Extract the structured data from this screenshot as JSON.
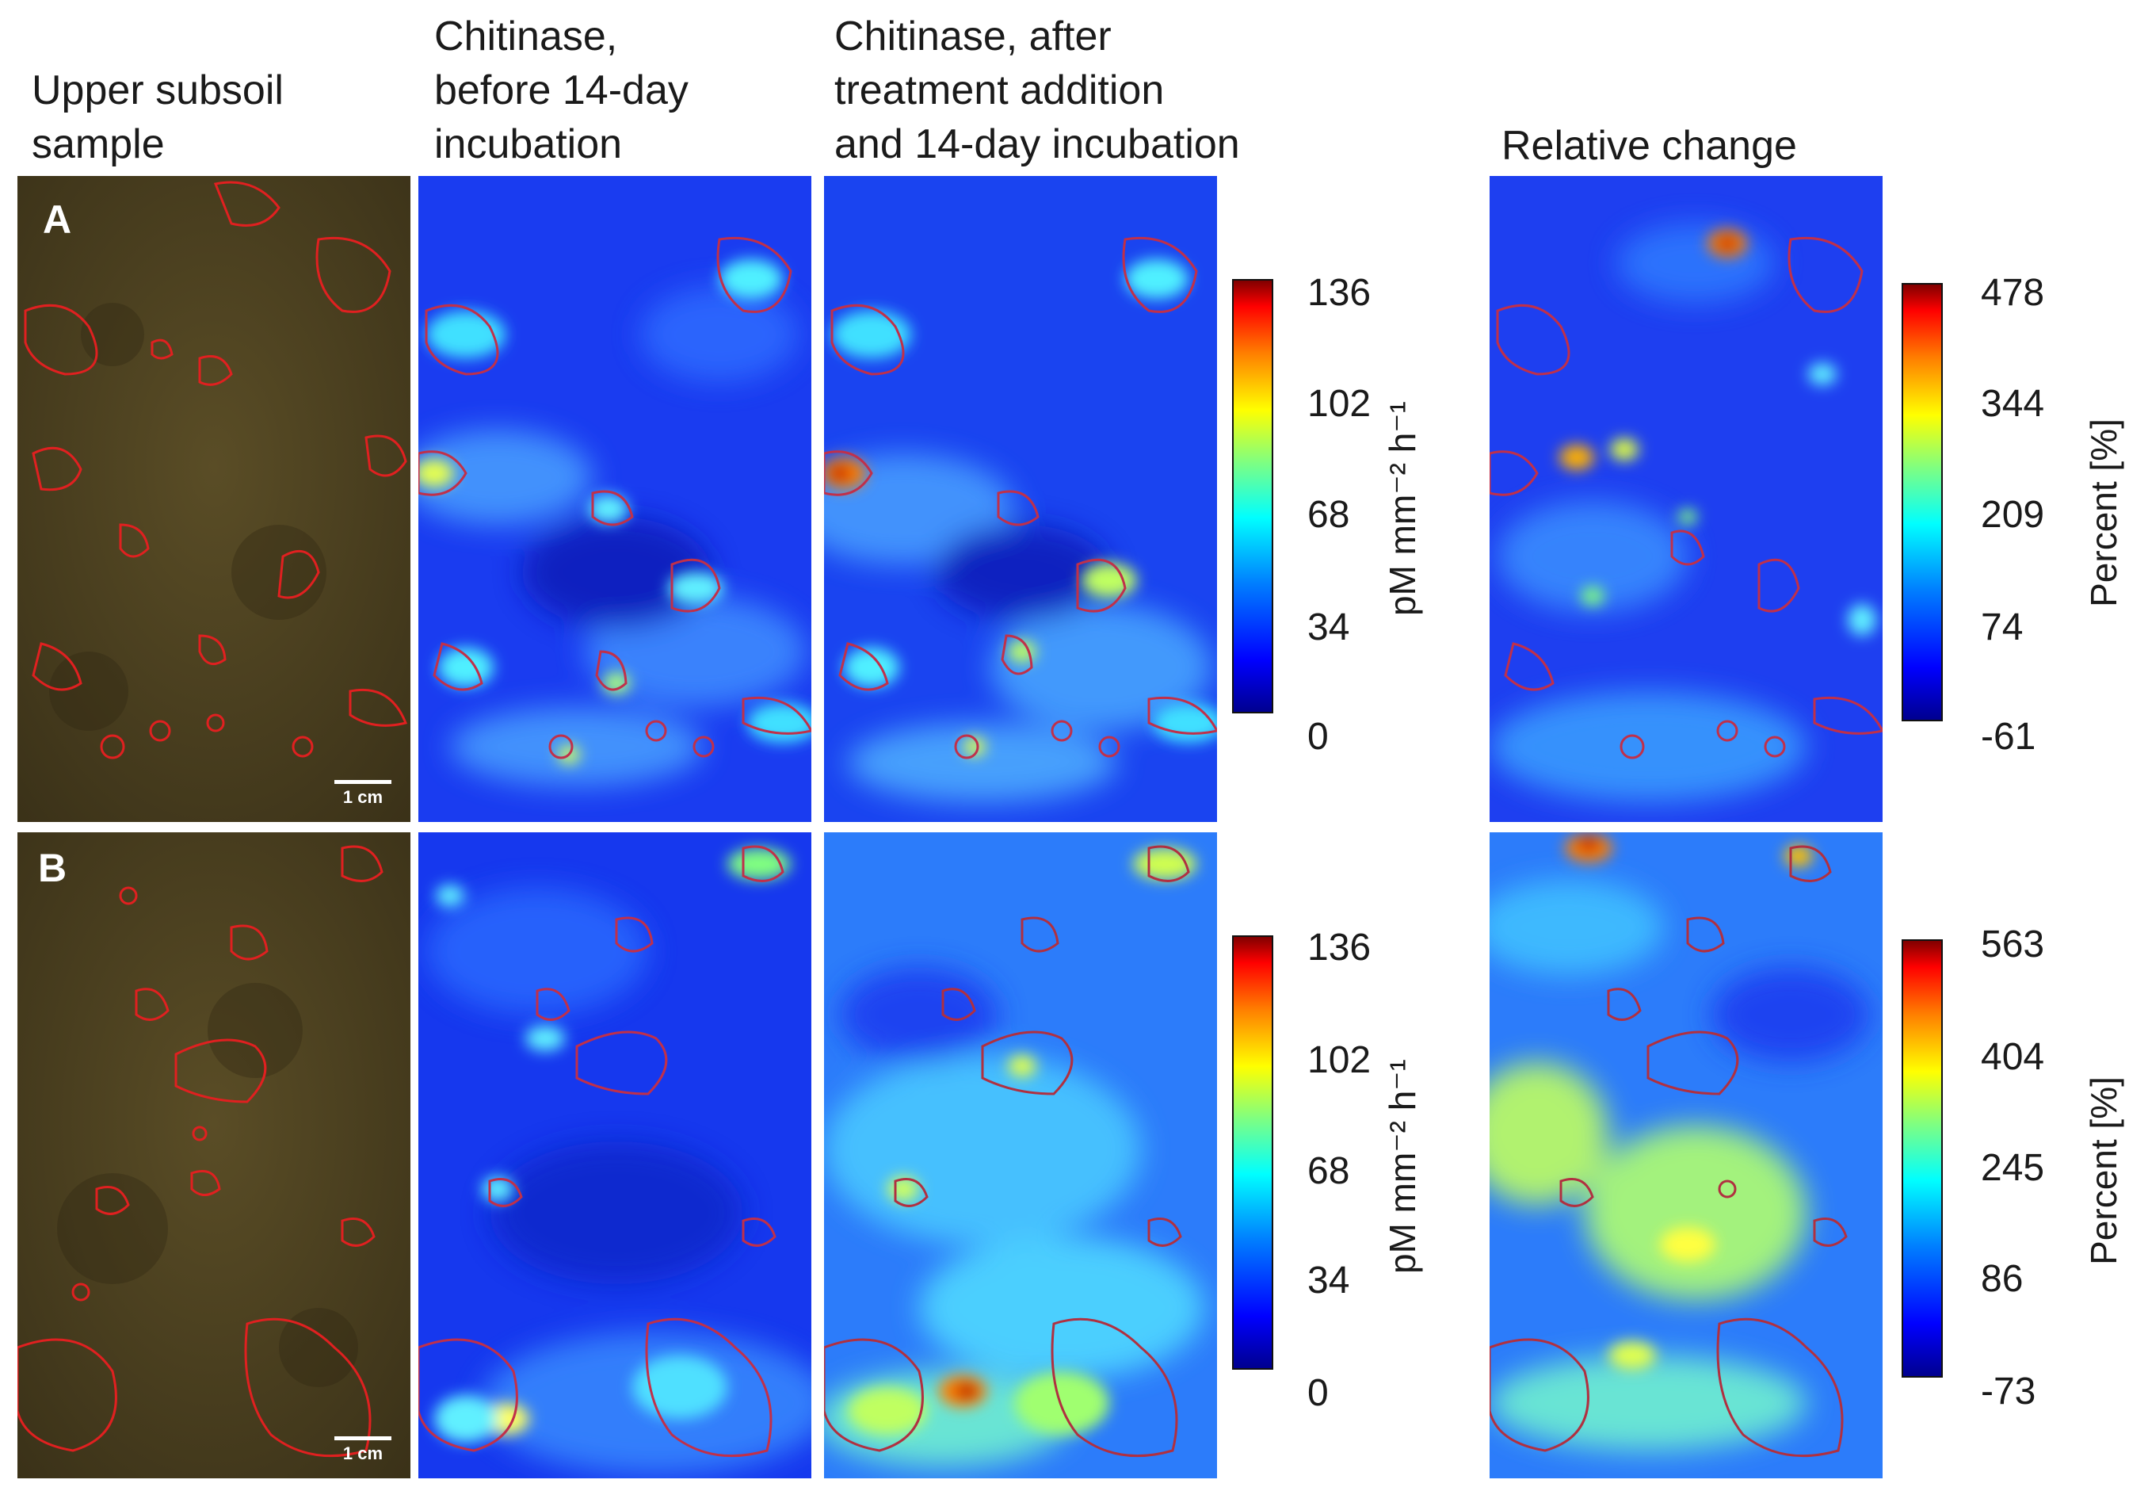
{
  "headers": {
    "col1": "Upper subsoil\nsample",
    "col2": "Chitinase,\nbefore 14-day\nincubation",
    "col3": "Chitinase, after\ntreatment addition\nand 14-day incubation",
    "col4": "Relative change"
  },
  "rows": [
    {
      "label": "A",
      "scale_bar": "1 cm",
      "chitinase_colorbar": {
        "ticks": [
          "136",
          "102",
          "68",
          "34",
          "0"
        ],
        "unit": "pM mm⁻² h⁻¹"
      },
      "relative_colorbar": {
        "ticks": [
          "478",
          "344",
          "209",
          "74",
          "-61"
        ],
        "unit": "Percent [%]"
      }
    },
    {
      "label": "B",
      "scale_bar": "1 cm",
      "chitinase_colorbar": {
        "ticks": [
          "136",
          "102",
          "68",
          "34",
          "0"
        ],
        "unit": "pM mm⁻² h⁻¹"
      },
      "relative_colorbar": {
        "ticks": [
          "563",
          "404",
          "245",
          "86",
          "-73"
        ],
        "unit": "Percent [%]"
      }
    }
  ],
  "colors": {
    "soil": "#4a3f20",
    "contour": "#e02020",
    "map_background": "#1a3cf0"
  }
}
